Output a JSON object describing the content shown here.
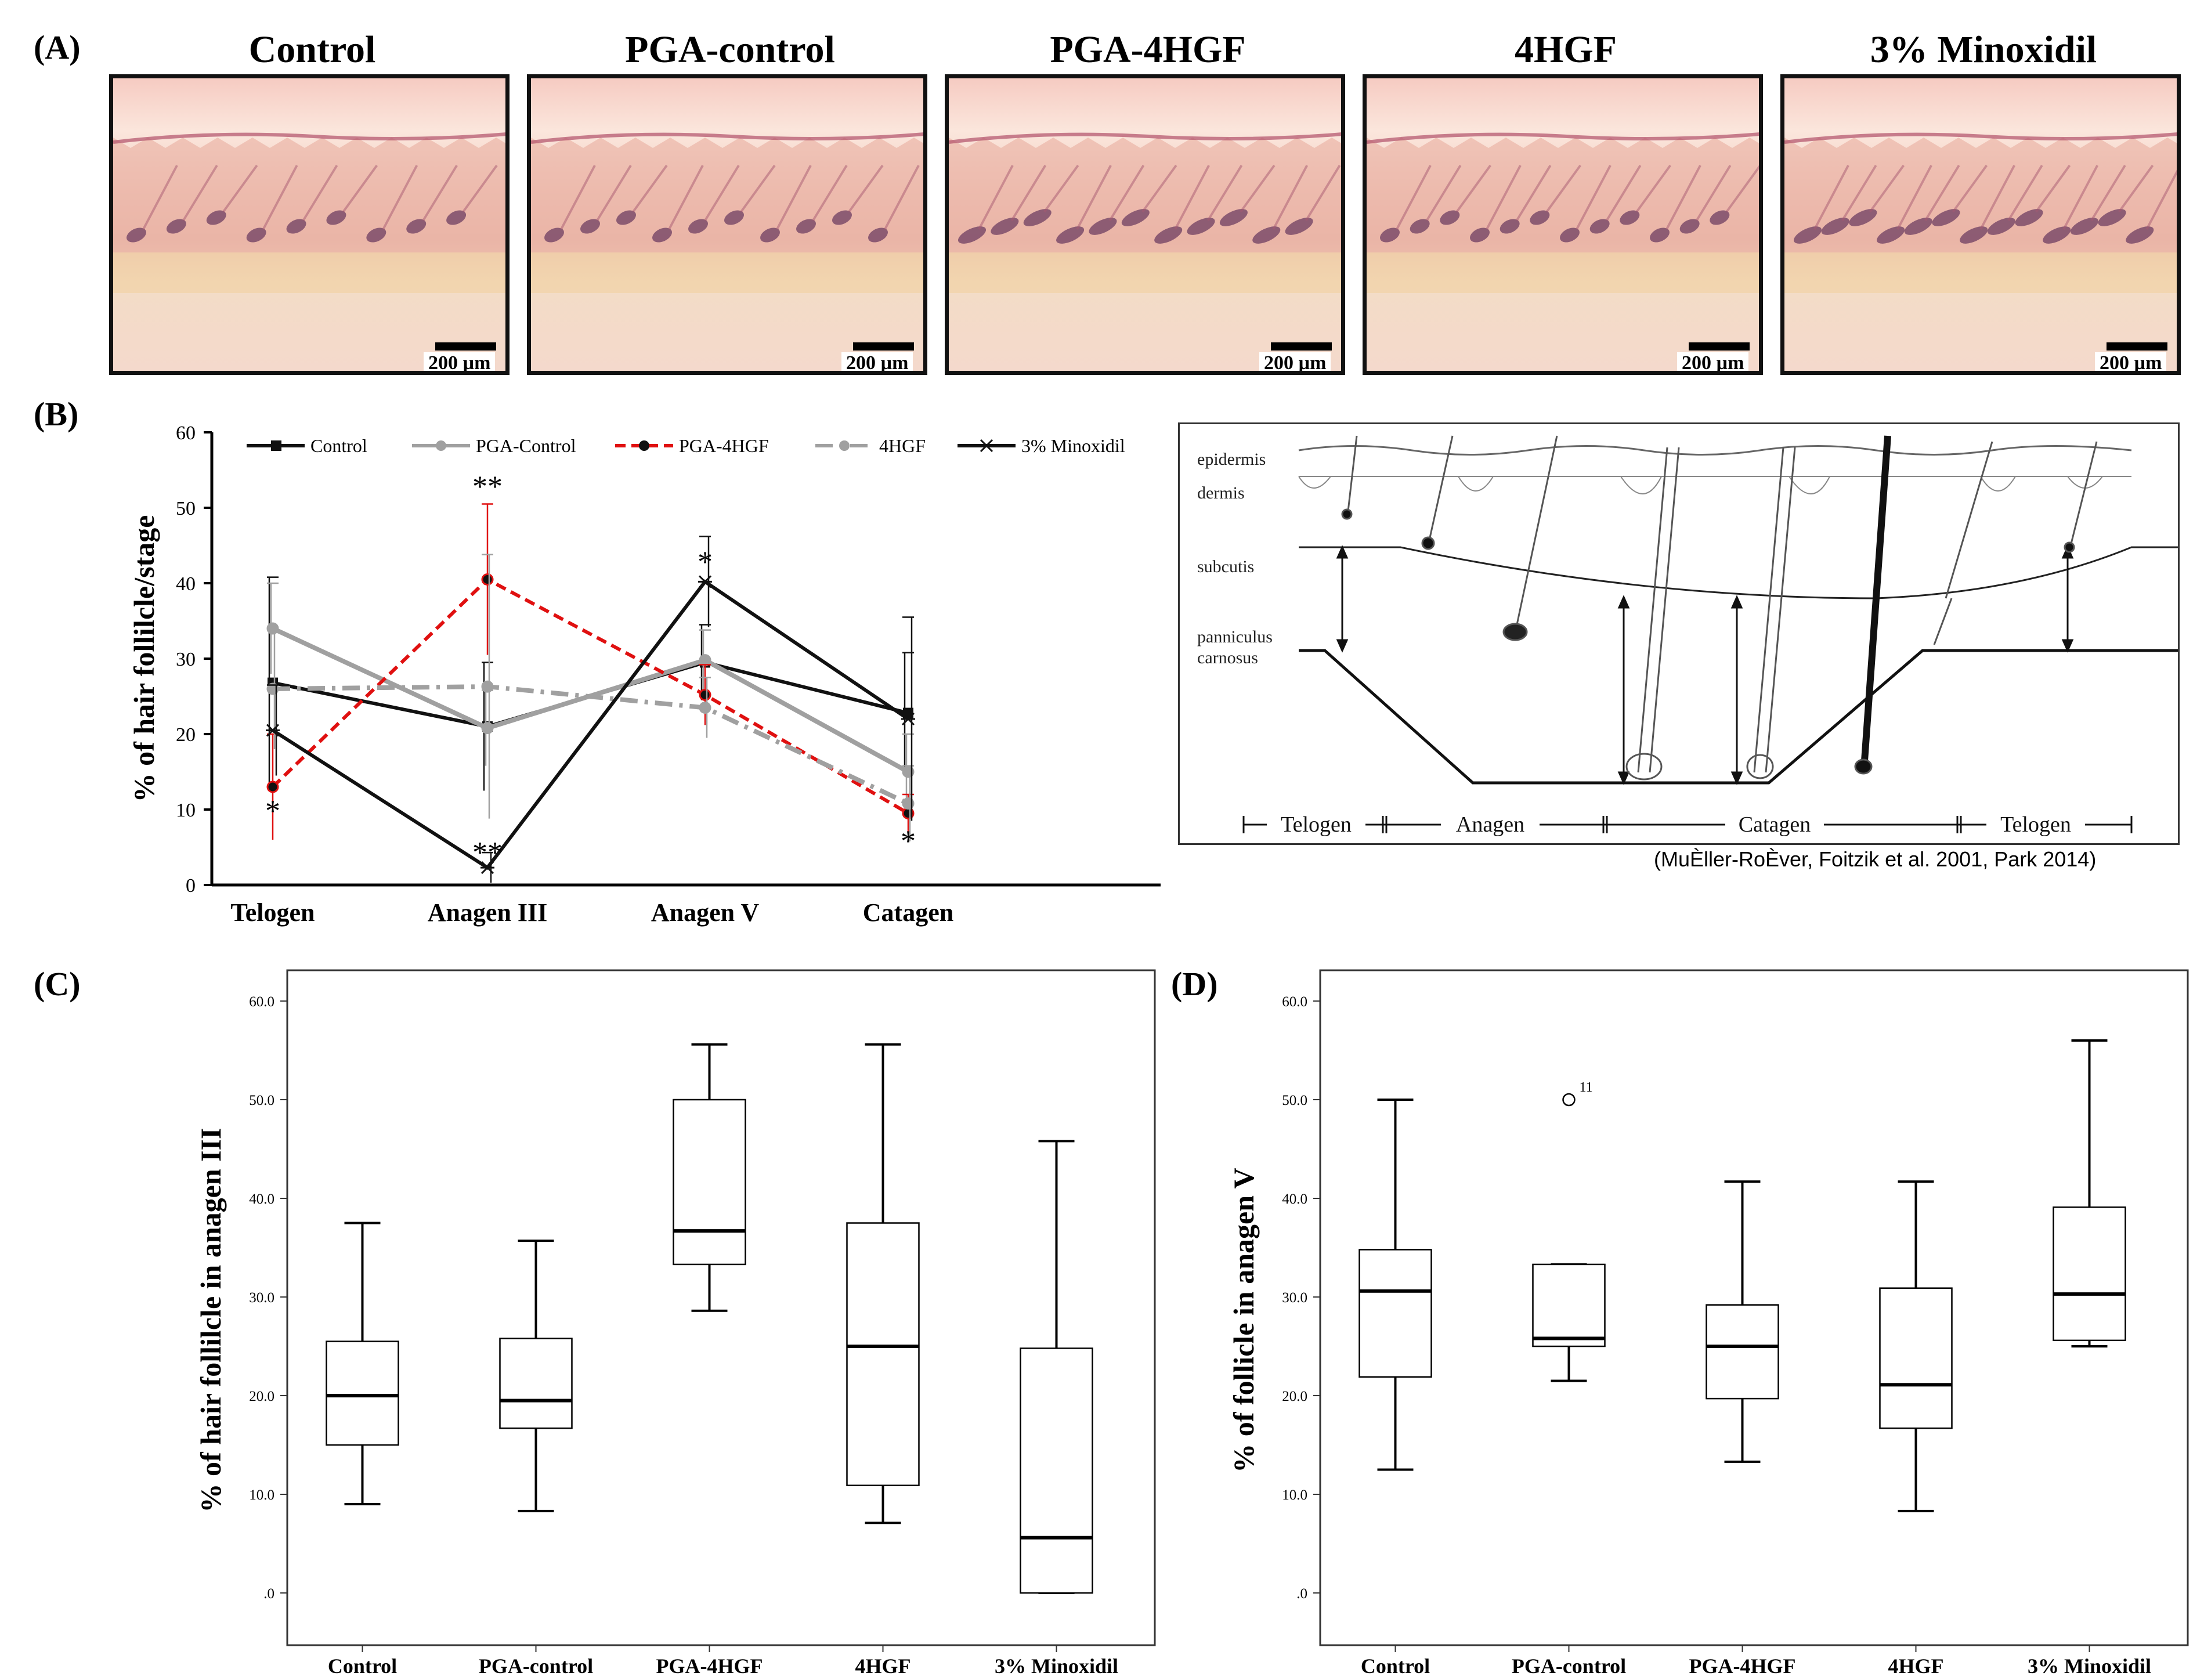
{
  "panel_a": {
    "label": "(A)",
    "images": [
      {
        "title": "Control",
        "scale": "200 µm"
      },
      {
        "title": "PGA-control",
        "scale": "200 µm"
      },
      {
        "title": "PGA-4HGF",
        "scale": "200 µm"
      },
      {
        "title": "4HGF",
        "scale": "200 µm"
      },
      {
        "title": "3% Minoxidil",
        "scale": "200 µm"
      }
    ]
  },
  "panel_b": {
    "label": "(B)"
  },
  "panel_c": {
    "label": "(C)"
  },
  "panel_d": {
    "label": "(D)"
  },
  "diagram": {
    "layers": [
      "epidermis",
      "dermis",
      "subcutis",
      "panniculus",
      "carnosus"
    ],
    "phases": [
      "Telogen",
      "Anagen",
      "Catagen",
      "Telogen"
    ],
    "citation": "(MuÈller-RoÈver, Foitzik et al. 2001, Park 2014)"
  },
  "chart_data": [
    {
      "type": "line",
      "panel": "B",
      "ylabel": "% of hair follilcle/stage",
      "xlabel": "",
      "ylim": [
        0,
        60
      ],
      "yticks": [
        "0",
        "10",
        "20",
        "30",
        "40",
        "50",
        "60"
      ],
      "categories": [
        "Telogen",
        "Anagen III",
        "Anagen V",
        "Catagen"
      ],
      "legend": "top",
      "series": [
        {
          "name": "Control",
          "values": [
            26.8,
            21.0,
            29.5,
            22.8
          ],
          "errors": [
            14.0,
            8.5,
            5.0,
            8.0
          ],
          "color": "#111111",
          "dash": "",
          "marker": "square"
        },
        {
          "name": "PGA-Control",
          "values": [
            34.0,
            20.8,
            29.8,
            15.0
          ],
          "errors": [
            6.0,
            5.0,
            4.0,
            5.0
          ],
          "color": "#a0a0a0",
          "dash": "",
          "marker": "circle"
        },
        {
          "name": "PGA-4HGF",
          "values": [
            13.0,
            40.5,
            25.2,
            9.5
          ],
          "errors": [
            7.0,
            10.0,
            4.0,
            2.5
          ],
          "color": "#e01010",
          "dash": "18 10",
          "marker": "circle"
        },
        {
          "name": "4HGF",
          "values": [
            26.0,
            26.3,
            23.5,
            10.8
          ],
          "errors": [
            8.0,
            17.5,
            4.0,
            5.0
          ],
          "color": "#a0a0a0",
          "dash": "30 12 6 12",
          "marker": "circle"
        },
        {
          "name": "3% Minoxidil",
          "values": [
            20.5,
            2.3,
            40.2,
            22.0
          ],
          "errors": [
            6.0,
            2.0,
            6.0,
            13.5
          ],
          "color": "#111111",
          "dash": "",
          "marker": "x"
        }
      ],
      "annotations": [
        {
          "category": "Telogen",
          "y": 8.5,
          "text": "*"
        },
        {
          "category": "Anagen III",
          "y": 51.5,
          "text": "**"
        },
        {
          "category": "Anagen III",
          "y": 3.0,
          "text": "**"
        },
        {
          "category": "Anagen V",
          "y": 41.5,
          "text": "*"
        },
        {
          "category": "Catagen",
          "y": 4.5,
          "text": "*"
        }
      ]
    },
    {
      "type": "box",
      "panel": "C",
      "ylabel": "% of hair follilcle in anagen III",
      "ylim": [
        0,
        60
      ],
      "yticks": [
        ".0",
        "10.0",
        "20.0",
        "30.0",
        "40.0",
        "50.0",
        "60.0"
      ],
      "categories": [
        "Control",
        "PGA-control",
        "PGA-4HGF",
        "4HGF",
        "3% Minoxidil"
      ],
      "boxes": [
        {
          "min": 9.0,
          "q1": 15.0,
          "median": 20.0,
          "q3": 25.5,
          "max": 37.5
        },
        {
          "min": 8.3,
          "q1": 16.7,
          "median": 19.5,
          "q3": 25.8,
          "max": 35.7
        },
        {
          "min": 28.6,
          "q1": 33.3,
          "median": 36.7,
          "q3": 50.0,
          "max": 55.6
        },
        {
          "min": 7.1,
          "q1": 10.9,
          "median": 25.0,
          "q3": 37.5,
          "max": 55.6
        },
        {
          "min": 0.0,
          "q1": 0.0,
          "median": 5.6,
          "q3": 24.8,
          "max": 45.8
        }
      ]
    },
    {
      "type": "box",
      "panel": "D",
      "ylabel": "% of follicle in anagen V",
      "ylim": [
        0,
        60
      ],
      "yticks": [
        ".0",
        "10.0",
        "20.0",
        "30.0",
        "40.0",
        "50.0",
        "60.0"
      ],
      "categories": [
        "Control",
        "PGA-control",
        "PGA-4HGF",
        "4HGF",
        "3% Minoxidil"
      ],
      "boxes": [
        {
          "min": 12.5,
          "q1": 21.9,
          "median": 30.6,
          "q3": 34.8,
          "max": 50.0
        },
        {
          "min": 21.5,
          "q1": 25.0,
          "median": 25.8,
          "q3": 33.3,
          "max": 33.3,
          "outlier": 50.0,
          "outlier_label": "11"
        },
        {
          "min": 13.3,
          "q1": 19.7,
          "median": 25.0,
          "q3": 29.2,
          "max": 41.7
        },
        {
          "min": 8.3,
          "q1": 16.7,
          "median": 21.1,
          "q3": 30.9,
          "max": 41.7
        },
        {
          "min": 25.0,
          "q1": 25.6,
          "median": 30.3,
          "q3": 39.1,
          "max": 56.0
        }
      ]
    }
  ]
}
